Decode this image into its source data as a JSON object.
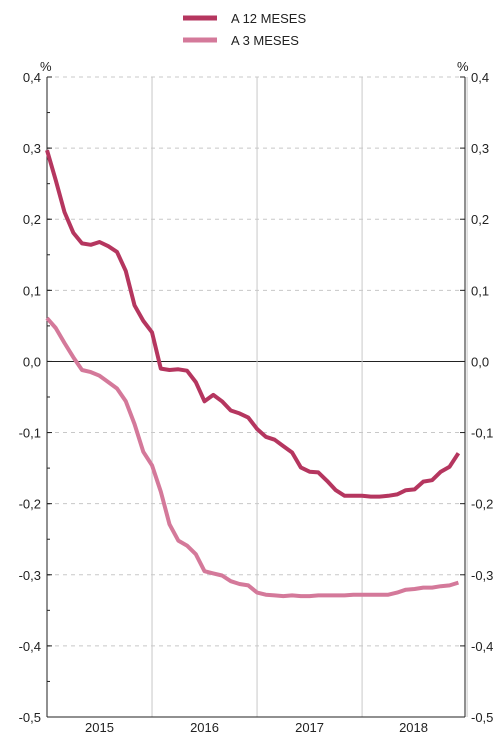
{
  "chart_data": {
    "type": "line",
    "xlabel": "",
    "ylabel_left": "%",
    "ylabel_right": "%",
    "ylim": [
      -0.5,
      0.4
    ],
    "yticks": [
      "-0,5",
      "-0,4",
      "-0,3",
      "-0,2",
      "-0,1",
      "0,0",
      "0,1",
      "0,2",
      "0,3",
      "0,4"
    ],
    "x_tick_labels": [
      "2015",
      "2016",
      "2017",
      "2018"
    ],
    "xlim": [
      2015.0,
      2018.98
    ],
    "grid": "dashed-horizontal, solid vertical at year boundaries",
    "legend_placement": "top-center",
    "series": [
      {
        "name": "A 12 MESES",
        "color": "#b5365f",
        "x": [
          2015.0,
          2015.0833,
          2015.1667,
          2015.25,
          2015.3333,
          2015.4167,
          2015.5,
          2015.5833,
          2015.6667,
          2015.75,
          2015.8333,
          2015.9167,
          2016.0,
          2016.0833,
          2016.1667,
          2016.25,
          2016.3333,
          2016.4167,
          2016.5,
          2016.5833,
          2016.6667,
          2016.75,
          2016.8333,
          2016.9167,
          2017.0,
          2017.0833,
          2017.1667,
          2017.25,
          2017.3333,
          2017.4167,
          2017.5,
          2017.5833,
          2017.6667,
          2017.75,
          2017.8333,
          2017.9167,
          2018.0,
          2018.0833,
          2018.1667,
          2018.25,
          2018.3333,
          2018.4167,
          2018.5,
          2018.5833,
          2018.6667,
          2018.75,
          2018.8333,
          2018.9167
        ],
        "values": [
          0.297,
          0.255,
          0.21,
          0.181,
          0.166,
          0.164,
          0.168,
          0.162,
          0.154,
          0.127,
          0.079,
          0.057,
          0.041,
          -0.01,
          -0.012,
          -0.011,
          -0.013,
          -0.029,
          -0.056,
          -0.047,
          -0.056,
          -0.069,
          -0.073,
          -0.079,
          -0.095,
          -0.106,
          -0.11,
          -0.119,
          -0.128,
          -0.149,
          -0.155,
          -0.156,
          -0.168,
          -0.181,
          -0.189,
          -0.189,
          -0.189,
          -0.19,
          -0.19,
          -0.189,
          -0.187,
          -0.181,
          -0.18,
          -0.169,
          -0.167,
          -0.155,
          -0.148,
          -0.129
        ]
      },
      {
        "name": "A 3 MESES",
        "color": "#d4799a",
        "x": [
          2015.0,
          2015.0833,
          2015.1667,
          2015.25,
          2015.3333,
          2015.4167,
          2015.5,
          2015.5833,
          2015.6667,
          2015.75,
          2015.8333,
          2015.9167,
          2016.0,
          2016.0833,
          2016.1667,
          2016.25,
          2016.3333,
          2016.4167,
          2016.5,
          2016.5833,
          2016.6667,
          2016.75,
          2016.8333,
          2016.9167,
          2017.0,
          2017.0833,
          2017.1667,
          2017.25,
          2017.3333,
          2017.4167,
          2017.5,
          2017.5833,
          2017.6667,
          2017.75,
          2017.8333,
          2017.9167,
          2018.0,
          2018.0833,
          2018.1667,
          2018.25,
          2018.3333,
          2018.4167,
          2018.5,
          2018.5833,
          2018.6667,
          2018.75,
          2018.8333,
          2018.9167
        ],
        "values": [
          0.061,
          0.047,
          0.026,
          0.006,
          -0.012,
          -0.015,
          -0.02,
          -0.029,
          -0.038,
          -0.056,
          -0.088,
          -0.127,
          -0.146,
          -0.183,
          -0.229,
          -0.252,
          -0.259,
          -0.271,
          -0.295,
          -0.298,
          -0.301,
          -0.309,
          -0.313,
          -0.315,
          -0.325,
          -0.328,
          -0.329,
          -0.33,
          -0.329,
          -0.33,
          -0.33,
          -0.329,
          -0.329,
          -0.329,
          -0.329,
          -0.328,
          -0.328,
          -0.328,
          -0.328,
          -0.328,
          -0.325,
          -0.321,
          -0.32,
          -0.318,
          -0.318,
          -0.316,
          -0.315,
          -0.311
        ]
      }
    ]
  }
}
